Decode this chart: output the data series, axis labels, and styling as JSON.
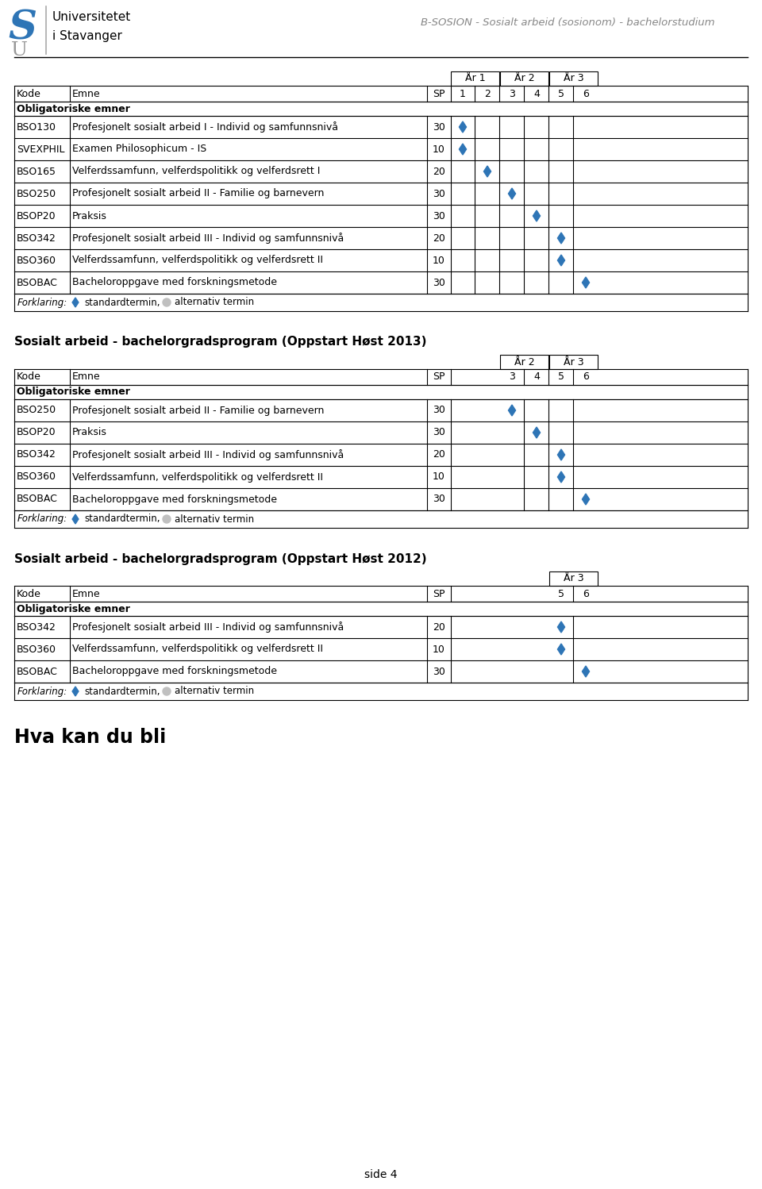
{
  "header_title": "B-SOSION - Sosialt arbeid (sosionom) - bachelorstudium",
  "page_label": "side 4",
  "diamond_color": "#2E75B6",
  "circle_color": "#C0C0C0",
  "section2_title": "Sosialt arbeid - bachelorgradsprogram (Oppstart Høst 2013)",
  "section3_title": "Sosialt arbeid - bachelorgradsprogram (Oppstart Høst 2012)",
  "bottom_title": "Hva kan du bli",
  "table1": {
    "year_headers": [
      "År 1",
      "År 2",
      "År 3"
    ],
    "section_label": "Obligatoriske emner",
    "rows": [
      {
        "kode": "BSO130",
        "emne": "Profesjonelt sosialt arbeid I - Individ og samfunnsnivå",
        "sp": "30",
        "dot_col": 0
      },
      {
        "kode": "SVEXPHIL",
        "emne": "Examen Philosophicum - IS",
        "sp": "10",
        "dot_col": 0
      },
      {
        "kode": "BSO165",
        "emne": "Velferdssamfunn, velferdspolitikk og velferdsrett I",
        "sp": "20",
        "dot_col": 1
      },
      {
        "kode": "BSO250",
        "emne": "Profesjonelt sosialt arbeid II - Familie og barnevern",
        "sp": "30",
        "dot_col": 2
      },
      {
        "kode": "BSOP20",
        "emne": "Praksis",
        "sp": "30",
        "dot_col": 3
      },
      {
        "kode": "BSO342",
        "emne": "Profesjonelt sosialt arbeid III - Individ og samfunnsnivå",
        "sp": "20",
        "dot_col": 4
      },
      {
        "kode": "BSO360",
        "emne": "Velferdssamfunn, velferdspolitikk og velferdsrett II",
        "sp": "10",
        "dot_col": 4
      },
      {
        "kode": "BSOBAC",
        "emne": "Bacheloroppgave med forskningsmetode",
        "sp": "30",
        "dot_col": 5
      }
    ]
  },
  "table2": {
    "year_headers": [
      "År 2",
      "År 3"
    ],
    "first_term": 3,
    "section_label": "Obligatoriske emner",
    "rows": [
      {
        "kode": "BSO250",
        "emne": "Profesjonelt sosialt arbeid II - Familie og barnevern",
        "sp": "30",
        "dot_col": 0
      },
      {
        "kode": "BSOP20",
        "emne": "Praksis",
        "sp": "30",
        "dot_col": 1
      },
      {
        "kode": "BSO342",
        "emne": "Profesjonelt sosialt arbeid III - Individ og samfunnsnivå",
        "sp": "20",
        "dot_col": 2
      },
      {
        "kode": "BSO360",
        "emne": "Velferdssamfunn, velferdspolitikk og velferdsrett II",
        "sp": "10",
        "dot_col": 2
      },
      {
        "kode": "BSOBAC",
        "emne": "Bacheloroppgave med forskningsmetode",
        "sp": "30",
        "dot_col": 3
      }
    ]
  },
  "table3": {
    "year_headers": [
      "År 3"
    ],
    "first_term": 5,
    "section_label": "Obligatoriske emner",
    "rows": [
      {
        "kode": "BSO342",
        "emne": "Profesjonelt sosialt arbeid III - Individ og samfunnsnivå",
        "sp": "20",
        "dot_col": 0
      },
      {
        "kode": "BSO360",
        "emne": "Velferdssamfunn, velferdspolitikk og velferdsrett II",
        "sp": "10",
        "dot_col": 0
      },
      {
        "kode": "BSOBAC",
        "emne": "Bacheloroppgave med forskningsmetode",
        "sp": "30",
        "dot_col": 1
      }
    ]
  }
}
